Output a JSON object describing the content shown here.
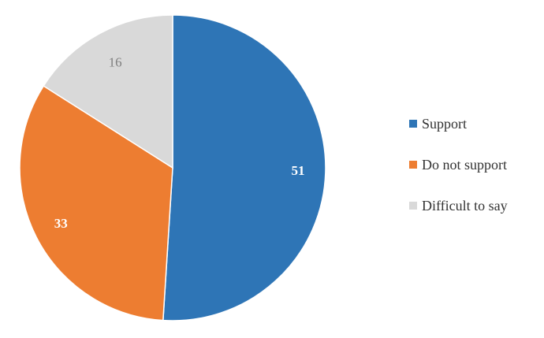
{
  "chart_data": {
    "type": "pie",
    "title": "",
    "categories": [
      "Support",
      "Do not support",
      "Difficult to say"
    ],
    "values": [
      51,
      33,
      16
    ],
    "value_labels": [
      "51",
      "33",
      "16"
    ],
    "colors": [
      "#2E75B6",
      "#ED7D31",
      "#D9D9D9"
    ],
    "label_colors": [
      "#FFFFFF",
      "#FFFFFF",
      "#7F7F7F"
    ],
    "start_angle": "12 o'clock",
    "direction": "clockwise",
    "legend": {
      "placement": "right",
      "items": [
        {
          "label": "Support",
          "color": "#2E75B6"
        },
        {
          "label": "Do not support",
          "color": "#ED7D31"
        },
        {
          "label": "Difficult to say",
          "color": "#D9D9D9"
        }
      ]
    }
  }
}
